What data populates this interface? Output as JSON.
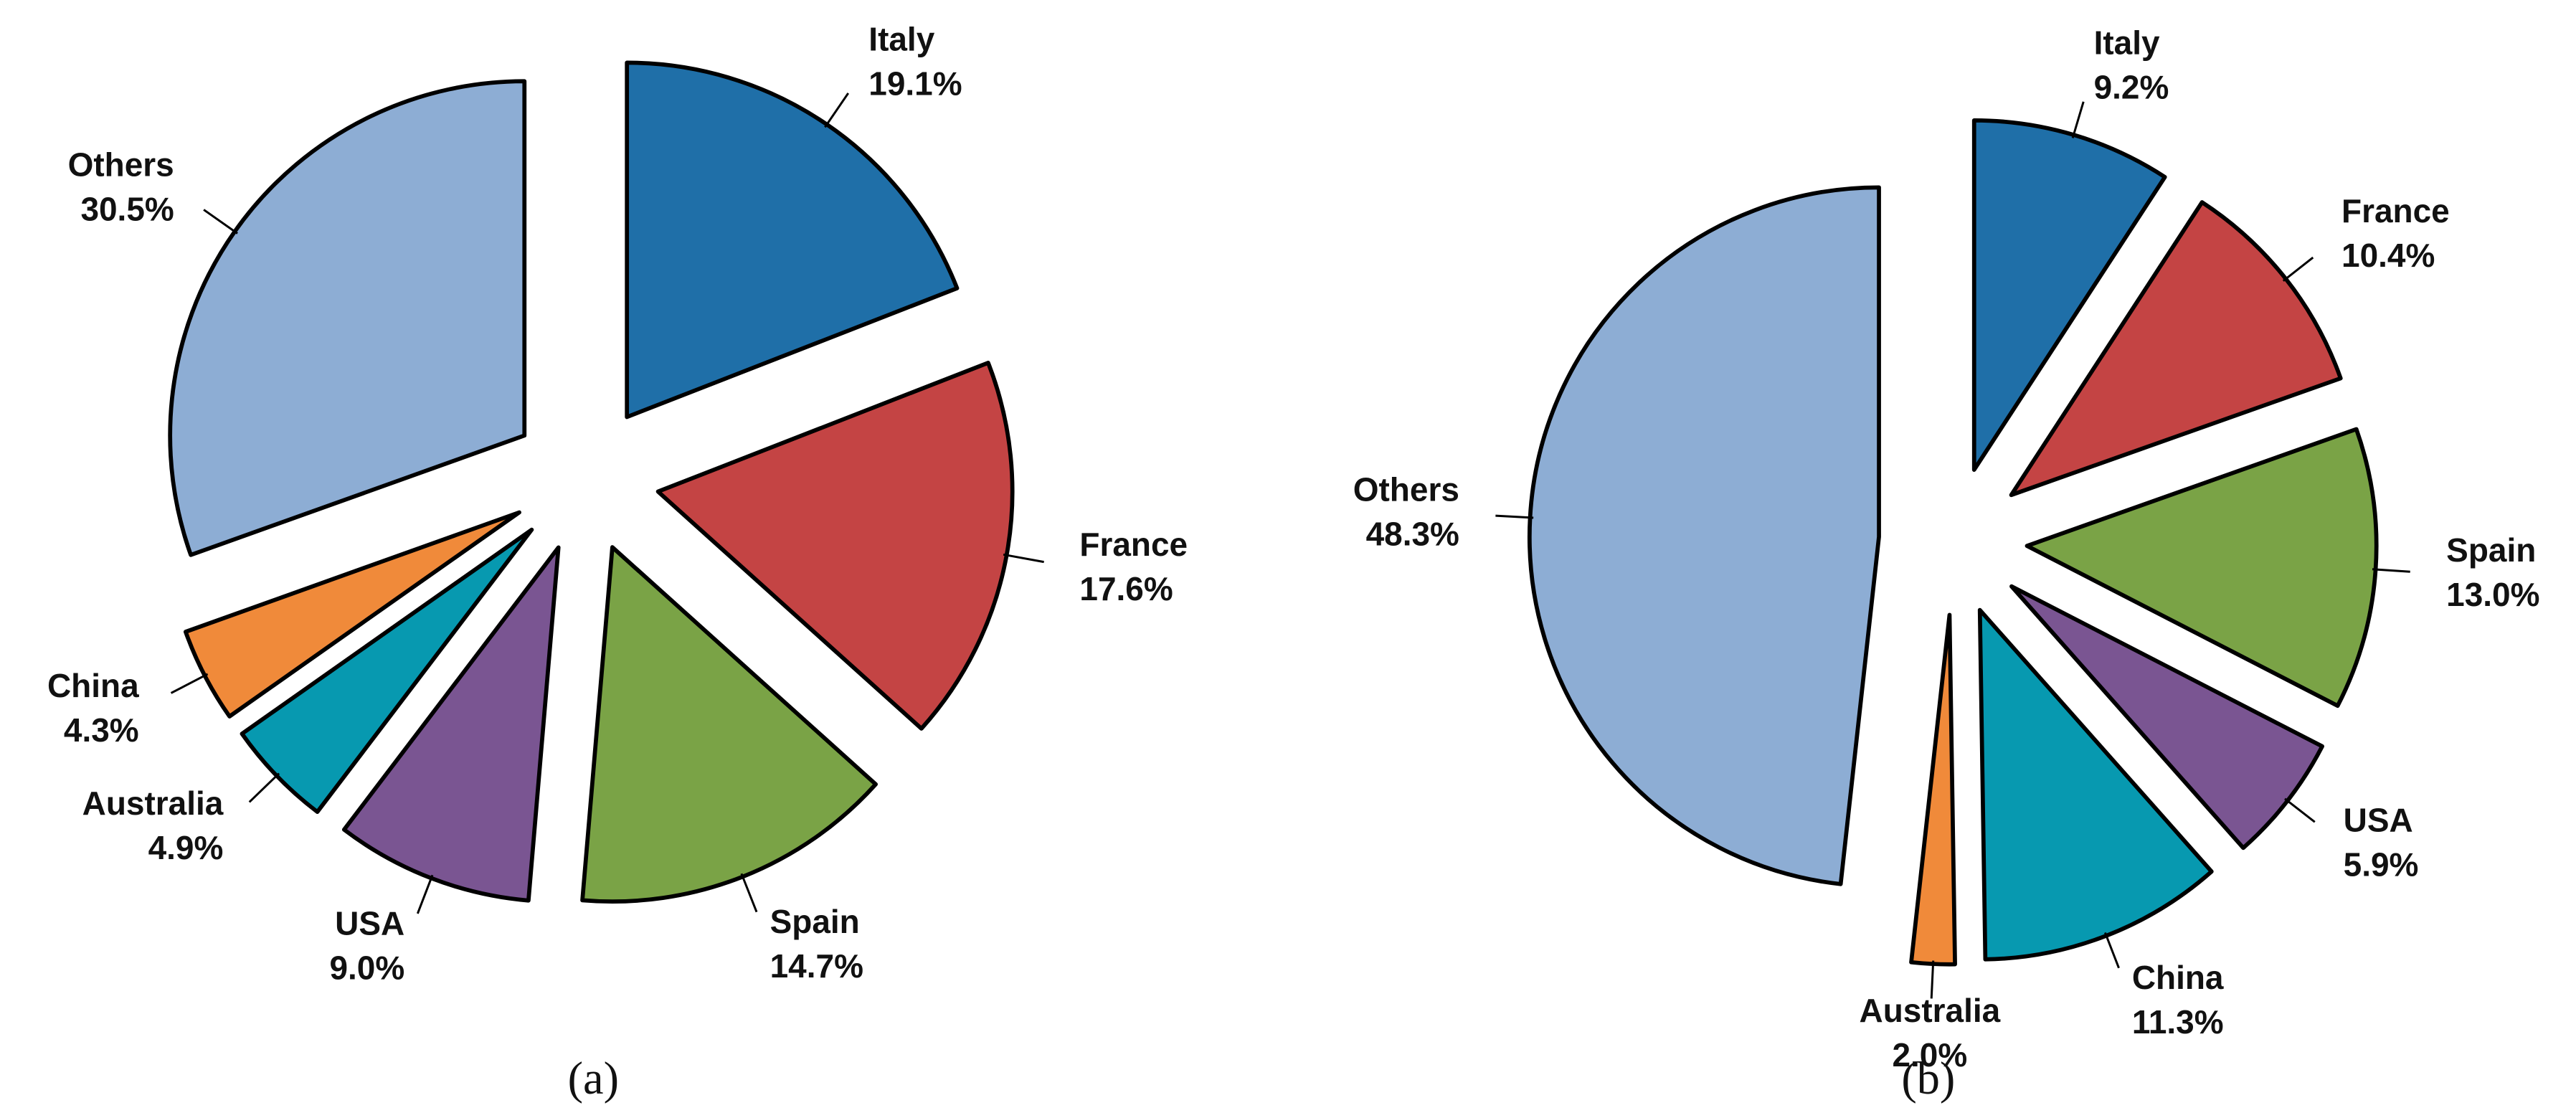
{
  "chart_data": [
    {
      "type": "pie",
      "caption": "(a)",
      "categories": [
        "Italy",
        "France",
        "Spain",
        "USA",
        "Australia",
        "China",
        "Others"
      ],
      "values": [
        19.1,
        17.6,
        14.7,
        9.0,
        4.9,
        4.3,
        30.5
      ],
      "value_labels": [
        "19.1%",
        "17.6%",
        "14.7%",
        "9.0%",
        "4.9%",
        "4.3%",
        "30.5%"
      ],
      "colors": [
        "#1f6fa8",
        "#c44444",
        "#7aa346",
        "#7a5592",
        "#0799b0",
        "#f08a3a",
        "#8dadd4"
      ]
    },
    {
      "type": "pie",
      "caption": "(b)",
      "categories": [
        "Italy",
        "France",
        "Spain",
        "USA",
        "China",
        "Australia",
        "Others"
      ],
      "values": [
        9.2,
        10.4,
        13.0,
        5.9,
        11.3,
        2.0,
        48.3
      ],
      "value_labels": [
        "9.2%",
        "10.4%",
        "13.0%",
        "5.9%",
        "11.3%",
        "2.0%",
        "48.3%"
      ],
      "colors": [
        "#1f6fa8",
        "#c44444",
        "#7aa346",
        "#7a5592",
        "#0799b0",
        "#f08a3a",
        "#8dadd4"
      ]
    }
  ]
}
